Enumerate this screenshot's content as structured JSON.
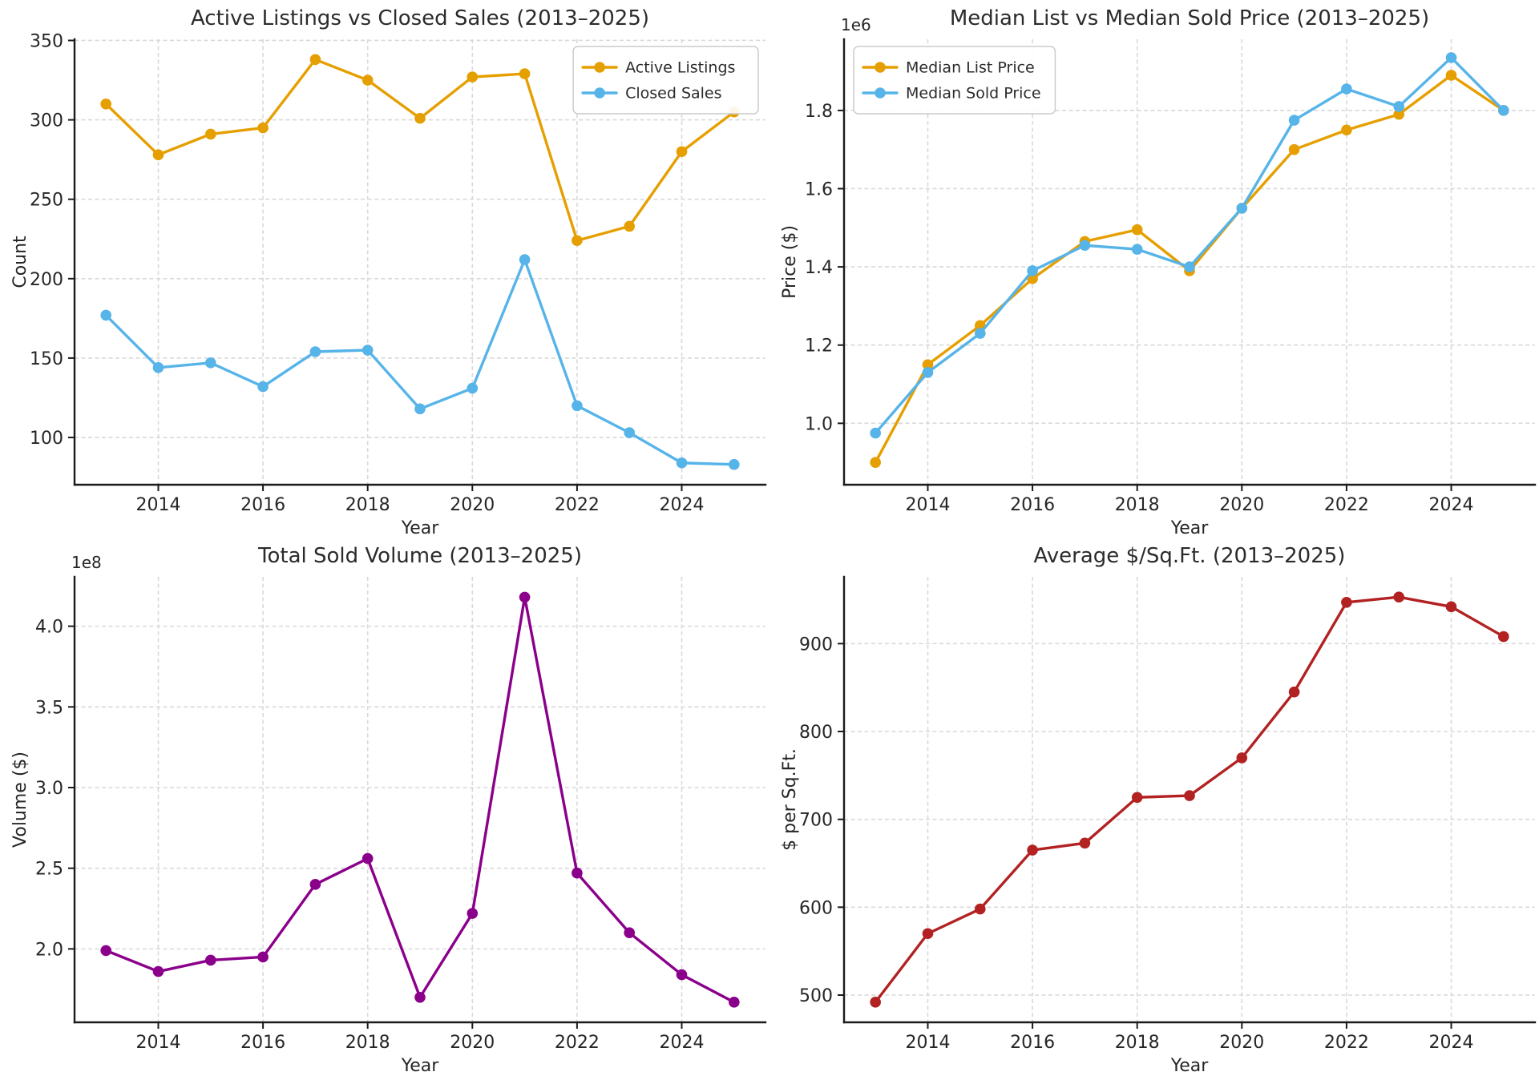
{
  "figure": {
    "background": "#ffffff",
    "text_color": "#262626",
    "spine_color": "#1a1a1a",
    "grid_color": "#d9d9d9"
  },
  "chart_data": [
    {
      "id": "active-vs-closed",
      "type": "line",
      "title": "Active Listings vs Closed Sales (2013–2025)",
      "xlabel": "Year",
      "ylabel": "Count",
      "offset_label": "",
      "x": [
        2013,
        2014,
        2015,
        2016,
        2017,
        2018,
        2019,
        2020,
        2021,
        2022,
        2023,
        2024,
        2025
      ],
      "xlim": [
        2012.4,
        2025.6
      ],
      "ylim": [
        70.25,
        350.75
      ],
      "xticks": [
        2014,
        2016,
        2018,
        2020,
        2022,
        2024
      ],
      "xtick_labels": [
        "2014",
        "2016",
        "2018",
        "2020",
        "2022",
        "2024"
      ],
      "yticks": [
        100,
        150,
        200,
        250,
        300,
        350
      ],
      "ytick_labels": [
        "100",
        "150",
        "200",
        "250",
        "300",
        "350"
      ],
      "grid": true,
      "legend_position": "upper-right",
      "series": [
        {
          "name": "Active Listings",
          "color": "#E69F00",
          "values": [
            310,
            278,
            291,
            295,
            338,
            325,
            301,
            327,
            329,
            224,
            233,
            280,
            305
          ]
        },
        {
          "name": "Closed Sales",
          "color": "#56B4E9",
          "values": [
            177,
            144,
            147,
            132,
            154,
            155,
            118,
            131,
            212,
            120,
            103,
            84,
            83
          ]
        }
      ]
    },
    {
      "id": "median-list-vs-sold",
      "type": "line",
      "title": "Median List vs Median Sold Price (2013–2025)",
      "xlabel": "Year",
      "ylabel": "Price ($)",
      "offset_label": "1e6",
      "x": [
        2013,
        2014,
        2015,
        2016,
        2017,
        2018,
        2019,
        2020,
        2021,
        2022,
        2023,
        2024,
        2025
      ],
      "xlim": [
        2012.4,
        2025.6
      ],
      "ylim": [
        0.843,
        1.982
      ],
      "xticks": [
        2014,
        2016,
        2018,
        2020,
        2022,
        2024
      ],
      "xtick_labels": [
        "2014",
        "2016",
        "2018",
        "2020",
        "2022",
        "2024"
      ],
      "yticks": [
        1.0,
        1.2,
        1.4,
        1.6,
        1.8
      ],
      "ytick_labels": [
        "1.0",
        "1.2",
        "1.4",
        "1.6",
        "1.8"
      ],
      "grid": true,
      "legend_position": "upper-left",
      "series": [
        {
          "name": "Median List Price",
          "color": "#E69F00",
          "values": [
            0.9,
            1.15,
            1.25,
            1.37,
            1.465,
            1.495,
            1.39,
            1.55,
            1.7,
            1.75,
            1.79,
            1.89,
            1.8
          ]
        },
        {
          "name": "Median Sold Price",
          "color": "#56B4E9",
          "values": [
            0.975,
            1.13,
            1.23,
            1.39,
            1.455,
            1.445,
            1.4,
            1.55,
            1.775,
            1.855,
            1.81,
            1.935,
            1.8
          ]
        }
      ]
    },
    {
      "id": "total-sold-volume",
      "type": "line",
      "title": "Total Sold Volume (2013–2025)",
      "xlabel": "Year",
      "ylabel": "Volume ($)",
      "offset_label": "1e8",
      "x": [
        2013,
        2014,
        2015,
        2016,
        2017,
        2018,
        2019,
        2020,
        2021,
        2022,
        2023,
        2024,
        2025
      ],
      "xlim": [
        2012.4,
        2025.6
      ],
      "ylim": [
        1.545,
        4.306
      ],
      "xticks": [
        2014,
        2016,
        2018,
        2020,
        2022,
        2024
      ],
      "xtick_labels": [
        "2014",
        "2016",
        "2018",
        "2020",
        "2022",
        "2024"
      ],
      "yticks": [
        2.0,
        2.5,
        3.0,
        3.5,
        4.0
      ],
      "ytick_labels": [
        "2.0",
        "2.5",
        "3.0",
        "3.5",
        "4.0"
      ],
      "grid": true,
      "legend_position": "none",
      "series": [
        {
          "name": "Total Sold Volume",
          "color": "#8B008B",
          "values": [
            1.99,
            1.86,
            1.93,
            1.95,
            2.4,
            2.56,
            1.7,
            2.22,
            4.18,
            2.47,
            2.1,
            1.84,
            1.67
          ]
        }
      ]
    },
    {
      "id": "avg-price-per-sqft",
      "type": "line",
      "title": "Average $/Sq.Ft. (2013–2025)",
      "xlabel": "Year",
      "ylabel": "$ per Sq.Ft.",
      "offset_label": "",
      "x": [
        2013,
        2014,
        2015,
        2016,
        2017,
        2018,
        2019,
        2020,
        2021,
        2022,
        2023,
        2024,
        2025
      ],
      "xlim": [
        2012.4,
        2025.6
      ],
      "ylim": [
        469,
        976
      ],
      "xticks": [
        2014,
        2016,
        2018,
        2020,
        2022,
        2024
      ],
      "xtick_labels": [
        "2014",
        "2016",
        "2018",
        "2020",
        "2022",
        "2024"
      ],
      "yticks": [
        500,
        600,
        700,
        800,
        900
      ],
      "ytick_labels": [
        "500",
        "600",
        "700",
        "800",
        "900"
      ],
      "grid": true,
      "legend_position": "none",
      "series": [
        {
          "name": "Average $/Sq.Ft.",
          "color": "#B22222",
          "values": [
            492,
            570,
            598,
            665,
            673,
            725,
            727,
            770,
            845,
            947,
            953,
            942,
            908
          ]
        }
      ]
    }
  ]
}
